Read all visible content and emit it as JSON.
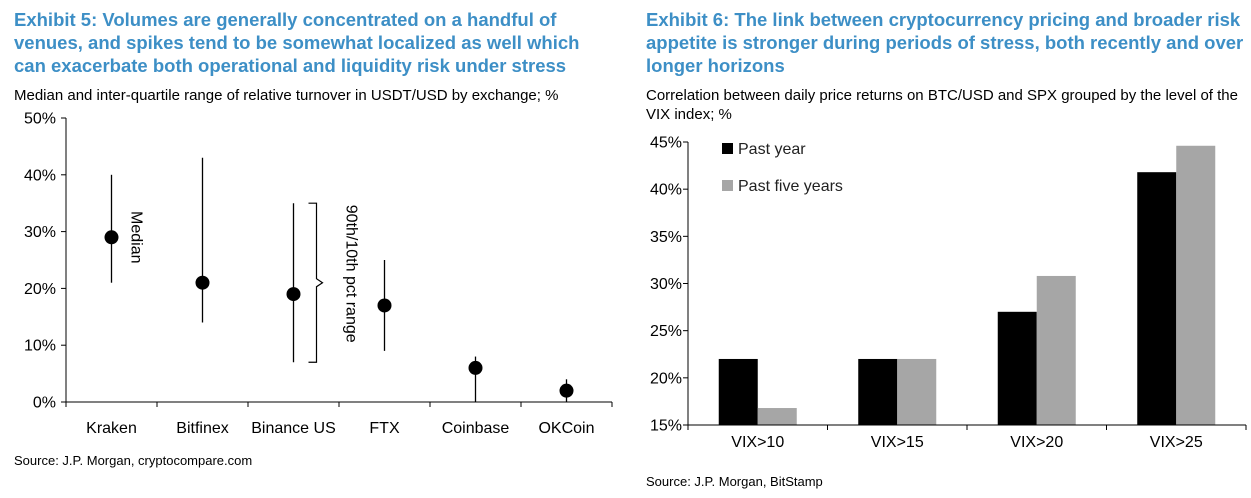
{
  "chart_data": [
    {
      "type": "scatter",
      "exhibit": "Exhibit 5:",
      "title": "Exhibit 5: Volumes are generally concentrated on a handful of venues, and spikes tend to be somewhat localized as well which can exacerbate both operational and liquidity risk under stress",
      "subtitle": "Median and inter-quartile range of relative turnover in USDT/USD by exchange; %",
      "categories": [
        "Kraken",
        "Bitfinex",
        "Binance US",
        "FTX",
        "Coinbase",
        "OKCoin"
      ],
      "median": [
        29,
        21,
        19,
        17,
        6,
        2
      ],
      "high": [
        40,
        43,
        35,
        25,
        8,
        4
      ],
      "low": [
        21,
        14,
        7,
        9,
        0,
        0
      ],
      "y_ticks": [
        "0%",
        "10%",
        "20%",
        "30%",
        "40%",
        "50%"
      ],
      "ylim": [
        0,
        50
      ],
      "annotations": {
        "median": "Median",
        "range": "90th/10th pct range"
      },
      "source": "Source: J.P.  Morgan, cryptocompare.com"
    },
    {
      "type": "bar",
      "exhibit": "Exhibit 6:",
      "title": "Exhibit 6: The link between cryptocurrency pricing and broader risk appetite is stronger during periods of stress, both recently and over longer horizons",
      "subtitle": "Correlation between daily price returns on BTC/USD and SPX grouped by the level of the VIX index; %",
      "categories": [
        "VIX>10",
        "VIX>15",
        "VIX>20",
        "VIX>25"
      ],
      "series": [
        {
          "name": "Past year",
          "color": "#000000",
          "values": [
            22,
            22,
            27,
            41.8
          ]
        },
        {
          "name": "Past five years",
          "color": "#a6a6a6",
          "values": [
            16.8,
            22,
            30.8,
            44.6
          ]
        }
      ],
      "y_ticks": [
        "15%",
        "20%",
        "25%",
        "30%",
        "35%",
        "40%",
        "45%"
      ],
      "ylim": [
        15,
        45
      ],
      "legend_position": "top-left",
      "source": "Source: J.P.  Morgan, BitStamp"
    }
  ]
}
